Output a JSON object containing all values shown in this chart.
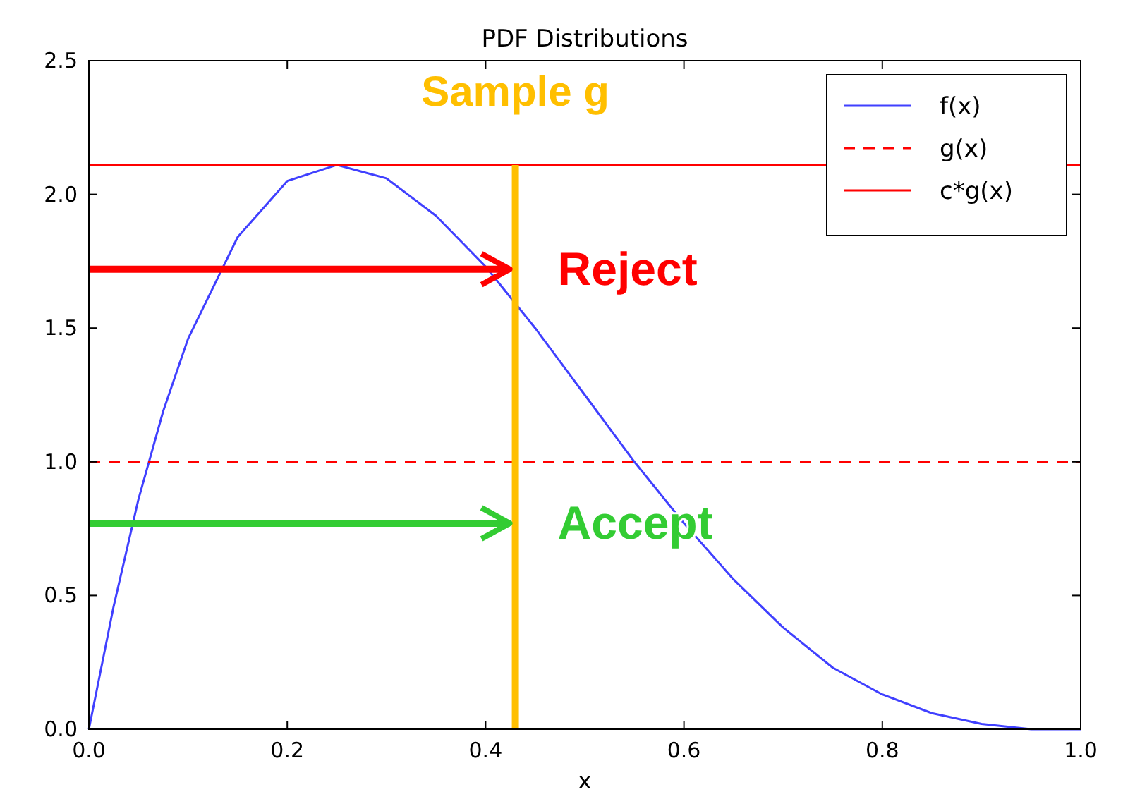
{
  "chart_data": {
    "type": "line",
    "title": "PDF Distributions",
    "xlabel": "x",
    "xlim": [
      0,
      1
    ],
    "ylim": [
      0,
      2.5
    ],
    "xticks": [
      {
        "value": 0,
        "label": "0.0"
      },
      {
        "value": 0.2,
        "label": "0.2"
      },
      {
        "value": 0.4,
        "label": "0.4"
      },
      {
        "value": 0.6,
        "label": "0.6"
      },
      {
        "value": 0.8,
        "label": "0.8"
      },
      {
        "value": 1,
        "label": "1.0"
      }
    ],
    "yticks": [
      {
        "value": 0,
        "label": "0.0"
      },
      {
        "value": 0.5,
        "label": "0.5"
      },
      {
        "value": 1,
        "label": "1.0"
      },
      {
        "value": 1.5,
        "label": "1.5"
      },
      {
        "value": 2,
        "label": "2.0"
      },
      {
        "value": 2.5,
        "label": "2.5"
      }
    ],
    "grid": false,
    "legend": "top right",
    "marker": "none",
    "series": [
      {
        "name": "f(x)",
        "color": "#4040ff",
        "line_style": "solid",
        "x": [
          0,
          0.025,
          0.05,
          0.075,
          0.1,
          0.15,
          0.2,
          0.25,
          0.3,
          0.35,
          0.4,
          0.45,
          0.5,
          0.55,
          0.6,
          0.65,
          0.7,
          0.75,
          0.8,
          0.85,
          0.9,
          0.95,
          1
        ],
        "values": [
          0,
          0.46,
          0.86,
          1.19,
          1.46,
          1.84,
          2.05,
          2.11,
          2.06,
          1.92,
          1.73,
          1.5,
          1.25,
          1.0,
          0.77,
          0.56,
          0.38,
          0.23,
          0.13,
          0.06,
          0.02,
          0,
          0
        ]
      },
      {
        "name": "g(x)",
        "color": "#ff0000",
        "line_style": "dashed",
        "x": [
          0,
          1
        ],
        "values": [
          1,
          1
        ]
      },
      {
        "name": "c*g(x)",
        "color": "#ff0000",
        "line_style": "solid",
        "x": [
          0,
          1
        ],
        "values": [
          2.11,
          2.11
        ]
      },
      {
        "color": "#ffbf00",
        "line_style": "solid",
        "x": [
          0.43,
          0.43
        ],
        "values": [
          0,
          2.11
        ]
      }
    ],
    "annotations": [
      "Sample g",
      {
        "text": "Reject",
        "x": 0.43,
        "y": 1.72
      },
      {
        "text": "Accept",
        "x": 0.43,
        "y": 0.77
      }
    ]
  }
}
